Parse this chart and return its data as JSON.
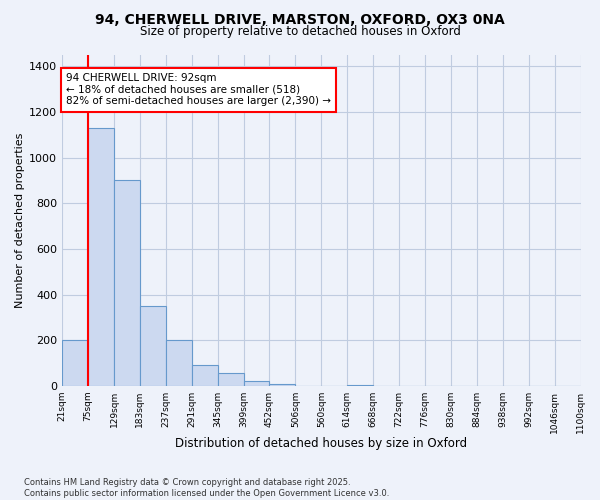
{
  "title1": "94, CHERWELL DRIVE, MARSTON, OXFORD, OX3 0NA",
  "title2": "Size of property relative to detached houses in Oxford",
  "xlabel": "Distribution of detached houses by size in Oxford",
  "ylabel": "Number of detached properties",
  "bin_labels": [
    "21sqm",
    "75sqm",
    "129sqm",
    "183sqm",
    "237sqm",
    "291sqm",
    "345sqm",
    "399sqm",
    "452sqm",
    "506sqm",
    "560sqm",
    "614sqm",
    "668sqm",
    "722sqm",
    "776sqm",
    "830sqm",
    "884sqm",
    "938sqm",
    "992sqm",
    "1046sqm",
    "1100sqm"
  ],
  "heights": [
    200,
    1130,
    900,
    350,
    200,
    90,
    55,
    20,
    10,
    0,
    0,
    5,
    0,
    0,
    0,
    0,
    0,
    0,
    0,
    0
  ],
  "bar_color": "#ccd9f0",
  "bar_edge_color": "#6699cc",
  "annotation_text": "94 CHERWELL DRIVE: 92sqm\n← 18% of detached houses are smaller (518)\n82% of semi-detached houses are larger (2,390) →",
  "ylim": [
    0,
    1450
  ],
  "yticks": [
    0,
    200,
    400,
    600,
    800,
    1000,
    1200,
    1400
  ],
  "footer1": "Contains HM Land Registry data © Crown copyright and database right 2025.",
  "footer2": "Contains public sector information licensed under the Open Government Licence v3.0.",
  "bg_color": "#eef2fa",
  "grid_color": "#c0cce0"
}
